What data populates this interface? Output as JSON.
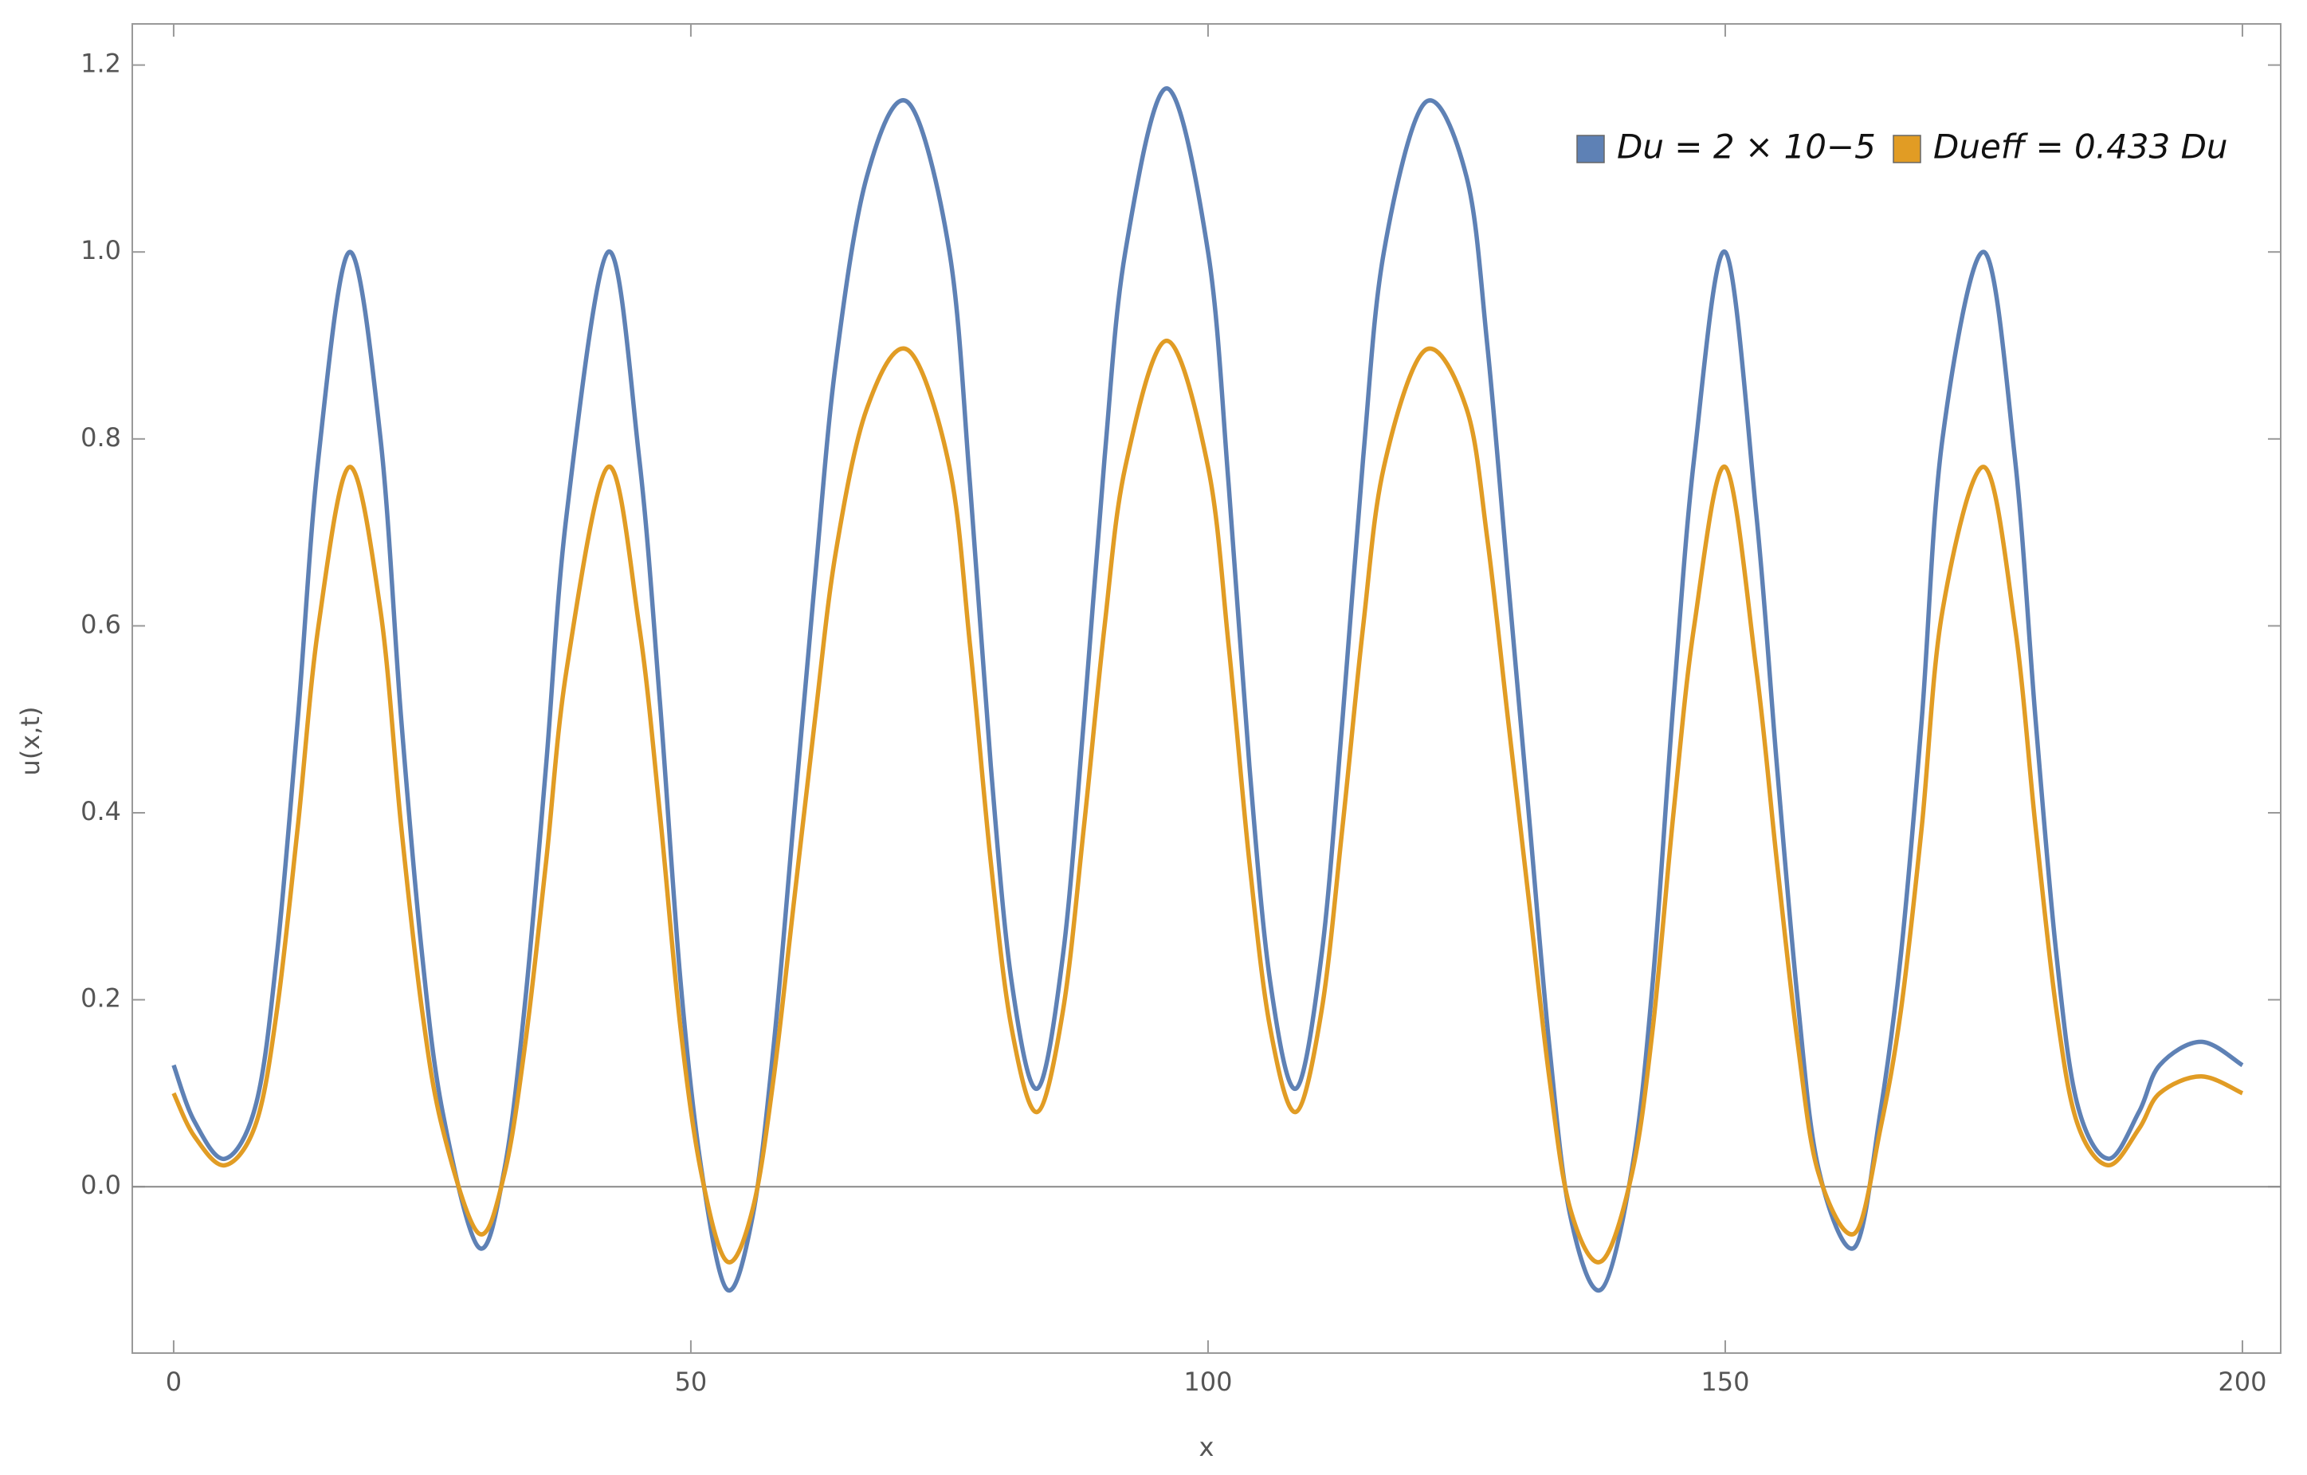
{
  "chart_data": {
    "type": "line",
    "xlabel": "x",
    "ylabel": "u(x,t)",
    "x": [
      0,
      2,
      5,
      8,
      10,
      12,
      14,
      17,
      20,
      22,
      24,
      26,
      29.5,
      32,
      34,
      36,
      38,
      42,
      45,
      47,
      49,
      51,
      53.5,
      56,
      58,
      60,
      62,
      64,
      67,
      71,
      75,
      77,
      79,
      81,
      83.5,
      86,
      88,
      90,
      92,
      96,
      100,
      102,
      104,
      106,
      108.5,
      111,
      113,
      115,
      117,
      121,
      125,
      127,
      129,
      131,
      133,
      135,
      138,
      141,
      143,
      145,
      147,
      150,
      153,
      155,
      157,
      159,
      162.5,
      165,
      167,
      169,
      171,
      175,
      178,
      180,
      182,
      184,
      187,
      190,
      192,
      196,
      200
    ],
    "series": [
      {
        "name": "Du = 2 × 10−5",
        "color": "#5e81b5",
        "values": [
          0.13,
          0.07,
          0.03,
          0.09,
          0.25,
          0.5,
          0.78,
          1.0,
          0.8,
          0.5,
          0.25,
          0.08,
          -0.065,
          0.02,
          0.2,
          0.45,
          0.72,
          1.0,
          0.78,
          0.52,
          0.22,
          0.02,
          -0.11,
          -0.03,
          0.15,
          0.4,
          0.65,
          0.88,
          1.08,
          1.16,
          1.0,
          0.75,
          0.45,
          0.22,
          0.105,
          0.25,
          0.5,
          0.78,
          1.0,
          1.175,
          1.0,
          0.75,
          0.45,
          0.22,
          0.105,
          0.25,
          0.5,
          0.78,
          1.0,
          1.16,
          1.08,
          0.9,
          0.65,
          0.4,
          0.15,
          -0.03,
          -0.11,
          0.02,
          0.22,
          0.52,
          0.78,
          1.0,
          0.72,
          0.45,
          0.2,
          0.02,
          -0.065,
          0.08,
          0.25,
          0.5,
          0.8,
          1.0,
          0.78,
          0.5,
          0.25,
          0.09,
          0.03,
          0.08,
          0.13,
          0.155,
          0.13
        ]
      },
      {
        "name": "Dueff = 0.433 Du",
        "color": "#e19c24",
        "values": [
          0.1,
          0.054,
          0.023,
          0.069,
          0.19,
          0.385,
          0.6,
          0.77,
          0.616,
          0.385,
          0.19,
          0.062,
          -0.05,
          0.015,
          0.154,
          0.347,
          0.554,
          0.77,
          0.6,
          0.4,
          0.17,
          0.015,
          -0.08,
          -0.023,
          0.116,
          0.308,
          0.5,
          0.678,
          0.832,
          0.895,
          0.77,
          0.578,
          0.347,
          0.17,
          0.08,
          0.19,
          0.385,
          0.6,
          0.77,
          0.905,
          0.77,
          0.578,
          0.347,
          0.17,
          0.08,
          0.19,
          0.385,
          0.6,
          0.77,
          0.895,
          0.832,
          0.693,
          0.5,
          0.308,
          0.116,
          -0.023,
          -0.08,
          0.015,
          0.17,
          0.4,
          0.6,
          0.77,
          0.554,
          0.347,
          0.154,
          0.015,
          -0.05,
          0.062,
          0.19,
          0.385,
          0.616,
          0.77,
          0.6,
          0.385,
          0.19,
          0.069,
          0.023,
          0.062,
          0.1,
          0.118,
          0.1
        ]
      }
    ],
    "xlim": [
      -4,
      203.7
    ],
    "ylim": [
      -0.178,
      1.244
    ],
    "xticks": [
      0,
      50,
      100,
      150,
      200
    ],
    "yticks": [
      {
        "value": 0,
        "label": "0.0"
      },
      0.2,
      0.4,
      0.6,
      0.8,
      {
        "value": 1,
        "label": "1.0"
      },
      1.2
    ],
    "zero_line": true,
    "legend": "top-right"
  }
}
